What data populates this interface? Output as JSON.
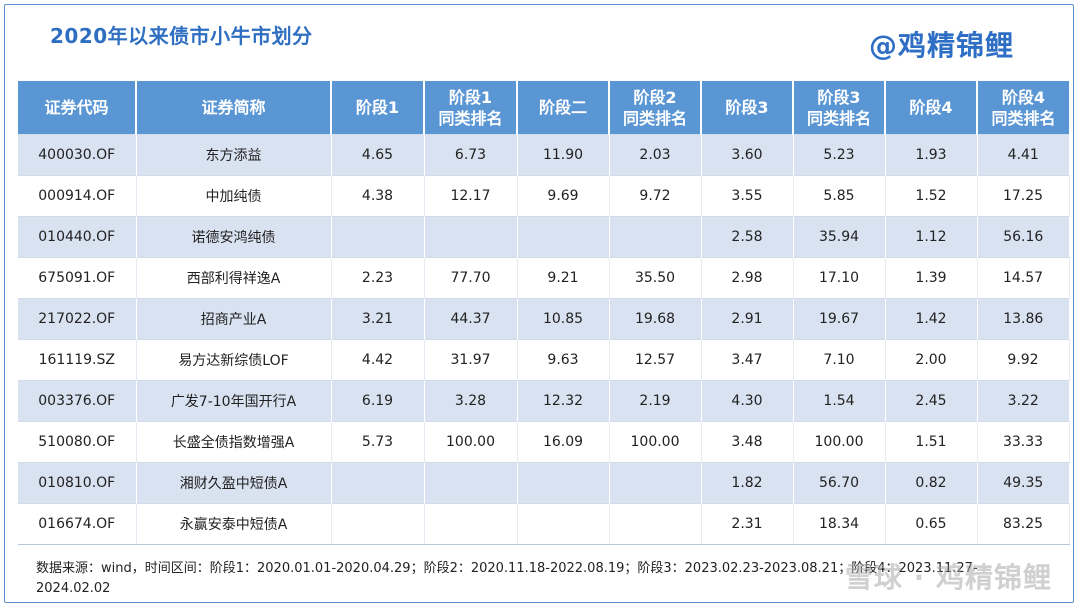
{
  "title": "2020年以来债市小牛市划分",
  "brand": "@鸡精锦鲤",
  "headers": [
    [
      "证券代码"
    ],
    [
      "证券简称"
    ],
    [
      "阶段1"
    ],
    [
      "阶段1",
      "同类排名"
    ],
    [
      "阶段二"
    ],
    [
      "阶段2",
      "同类排名"
    ],
    [
      "阶段3"
    ],
    [
      "阶段3",
      "同类排名"
    ],
    [
      "阶段4"
    ],
    [
      "阶段4",
      "同类排名"
    ]
  ],
  "rows": [
    {
      "code": "400030.OF",
      "name": "东方添益",
      "vals": [
        "4.65",
        "6.73",
        "11.90",
        "2.03",
        "3.60",
        "5.23",
        "1.93",
        "4.41"
      ],
      "hl": [
        1,
        1,
        1,
        1,
        1,
        1,
        1,
        1
      ]
    },
    {
      "code": "000914.OF",
      "name": "中加纯债",
      "vals": [
        "4.38",
        "12.17",
        "9.69",
        "9.72",
        "3.55",
        "5.85",
        "1.52",
        "17.25"
      ],
      "hl": [
        0,
        0,
        0,
        0,
        0,
        0,
        0,
        0
      ]
    },
    {
      "code": "010440.OF",
      "name": "诺德安鸿纯债",
      "vals": [
        "",
        "",
        "",
        "",
        "2.58",
        "35.94",
        "1.12",
        "56.16"
      ],
      "hl": [
        0,
        0,
        0,
        0,
        0,
        0,
        0,
        0
      ]
    },
    {
      "code": "675091.OF",
      "name": "西部利得祥逸A",
      "vals": [
        "2.23",
        "77.70",
        "9.21",
        "35.50",
        "2.98",
        "17.10",
        "1.39",
        "14.57"
      ],
      "hl": [
        0,
        0,
        0,
        0,
        0,
        0,
        0,
        0
      ]
    },
    {
      "code": "217022.OF",
      "name": "招商产业A",
      "vals": [
        "3.21",
        "44.37",
        "10.85",
        "19.68",
        "2.91",
        "19.67",
        "1.42",
        "13.86"
      ],
      "hl": [
        0,
        0,
        0,
        0,
        0,
        0,
        0,
        0
      ]
    },
    {
      "code": "161119.SZ",
      "name": "易方达新综债LOF",
      "vals": [
        "4.42",
        "31.97",
        "9.63",
        "12.57",
        "3.47",
        "7.10",
        "2.00",
        "9.92"
      ],
      "hl": [
        0,
        0,
        0,
        0,
        0,
        0,
        0,
        0
      ]
    },
    {
      "code": "003376.OF",
      "name": "广发7-10年国开行A",
      "vals": [
        "6.19",
        "3.28",
        "12.32",
        "2.19",
        "4.30",
        "1.54",
        "2.45",
        "3.22"
      ],
      "hl": [
        1,
        1,
        1,
        1,
        1,
        1,
        1,
        1
      ]
    },
    {
      "code": "510080.OF",
      "name": "长盛全债指数增强A",
      "vals": [
        "5.73",
        "100.00",
        "16.09",
        "100.00",
        "3.48",
        "100.00",
        "1.51",
        "33.33"
      ],
      "hl": [
        1,
        0,
        1,
        0,
        1,
        0,
        1,
        0
      ]
    },
    {
      "code": "010810.OF",
      "name": "湘财久盈中短债A",
      "vals": [
        "",
        "",
        "",
        "",
        "1.82",
        "56.70",
        "0.82",
        "49.35"
      ],
      "hl": [
        0,
        0,
        0,
        0,
        0,
        0,
        0,
        0
      ]
    },
    {
      "code": "016674.OF",
      "name": "永赢安泰中短债A",
      "vals": [
        "",
        "",
        "",
        "",
        "2.31",
        "18.34",
        "0.65",
        "83.25"
      ],
      "hl": [
        0,
        0,
        0,
        0,
        0,
        0,
        0,
        0
      ]
    }
  ],
  "footnote_line1": "数据来源：wind，时间区间：阶段1：2020.01.01-2020.04.29；阶段2：2020.11.18-2022.08.19；阶段3：2023.02.23-2023.08.21；阶段4：2023.11.27-",
  "footnote_line2": "2024.02.02",
  "watermark": "雪球 · 鸡精锦鲤",
  "colors": {
    "header_bg": "#5b96d4",
    "stripe": "#d9e2f1",
    "highlight": "#e02020",
    "title": "#2f6fc1"
  }
}
